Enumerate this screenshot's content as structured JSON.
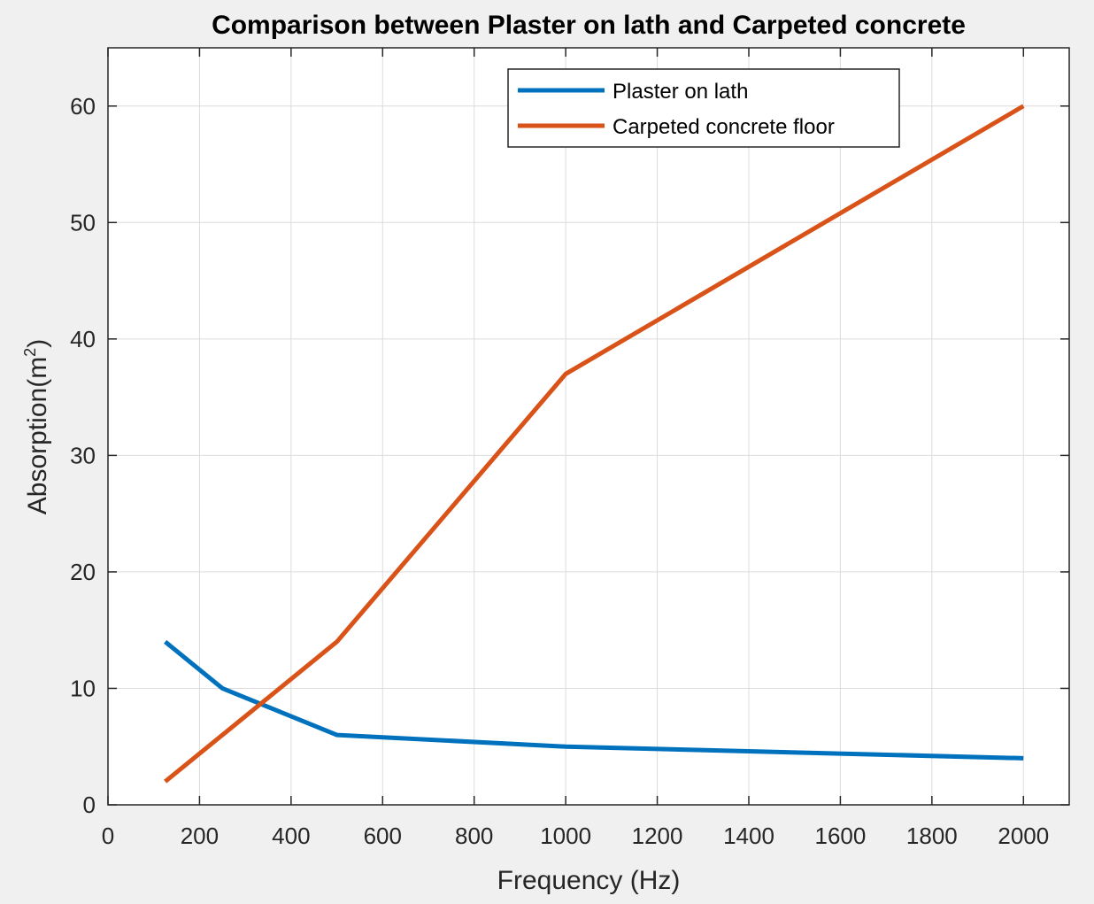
{
  "chart_data": {
    "type": "line",
    "title": "Comparison between Plaster on lath and Carpeted concrete",
    "xlabel": "Frequency (Hz)",
    "ylabel_base": "Absorption(m",
    "ylabel_sup": "2",
    "ylabel_close": ")",
    "xlim": [
      0,
      2100
    ],
    "ylim": [
      0,
      65
    ],
    "xticks": [
      0,
      200,
      400,
      600,
      800,
      1000,
      1200,
      1400,
      1600,
      1800,
      2000
    ],
    "yticks": [
      0,
      10,
      20,
      30,
      40,
      50,
      60
    ],
    "grid": true,
    "legend_location": "top-right",
    "x": [
      125,
      250,
      500,
      1000,
      2000
    ],
    "series": [
      {
        "name": "Plaster on lath",
        "color": "#0072bd",
        "values": [
          14,
          10,
          6,
          5,
          4
        ]
      },
      {
        "name": "Carpeted concrete floor",
        "color": "#d95319",
        "values": [
          2,
          6,
          14,
          37,
          60
        ]
      }
    ]
  }
}
